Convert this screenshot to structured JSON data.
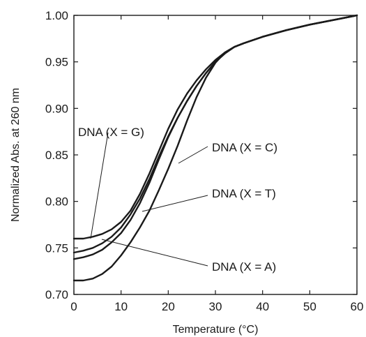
{
  "chart_data": {
    "type": "line",
    "title": "",
    "xlabel": "Temperature (°C)",
    "ylabel": "Normalized Abs. at 260 nm",
    "xlim": [
      0,
      60
    ],
    "ylim": [
      0.7,
      1.0
    ],
    "x_ticks": [
      "0",
      "10",
      "20",
      "30",
      "40",
      "50",
      "60"
    ],
    "y_ticks": [
      "0.70",
      "0.75",
      "0.80",
      "0.85",
      "0.90",
      "0.95",
      "1.00"
    ],
    "grid": false,
    "legend": "none",
    "series": [
      {
        "name": "DNA (X = G)",
        "color": "#1a1a1a",
        "x": [
          0,
          2,
          4,
          6,
          8,
          10,
          12,
          14,
          16,
          18,
          20,
          22,
          24,
          26,
          28,
          30,
          32,
          34,
          36,
          40,
          45,
          50,
          55,
          60
        ],
        "y": [
          0.76,
          0.76,
          0.762,
          0.765,
          0.77,
          0.778,
          0.79,
          0.808,
          0.83,
          0.854,
          0.878,
          0.899,
          0.916,
          0.93,
          0.942,
          0.952,
          0.96,
          0.966,
          0.97,
          0.977,
          0.984,
          0.99,
          0.995,
          1.0
        ]
      },
      {
        "name": "DNA (X = C)",
        "color": "#1a1a1a",
        "x": [
          0,
          2,
          4,
          6,
          8,
          10,
          12,
          14,
          16,
          18,
          20,
          22,
          24,
          26,
          28,
          30,
          32,
          34,
          36,
          40,
          45,
          50,
          55,
          60
        ],
        "y": [
          0.715,
          0.715,
          0.717,
          0.722,
          0.73,
          0.742,
          0.756,
          0.772,
          0.79,
          0.812,
          0.835,
          0.86,
          0.887,
          0.912,
          0.933,
          0.949,
          0.96,
          0.966,
          0.97,
          0.977,
          0.984,
          0.99,
          0.995,
          1.0
        ]
      },
      {
        "name": "DNA (X = T)",
        "color": "#1a1a1a",
        "x": [
          0,
          2,
          4,
          6,
          8,
          10,
          12,
          14,
          16,
          18,
          20,
          22,
          24,
          26,
          28,
          30,
          32,
          34,
          36,
          40,
          45,
          50,
          55,
          60
        ],
        "y": [
          0.745,
          0.747,
          0.75,
          0.755,
          0.762,
          0.772,
          0.786,
          0.803,
          0.824,
          0.848,
          0.87,
          0.89,
          0.908,
          0.924,
          0.938,
          0.95,
          0.959,
          0.966,
          0.97,
          0.977,
          0.984,
          0.99,
          0.995,
          1.0
        ]
      },
      {
        "name": "DNA (X = A)",
        "color": "#1a1a1a",
        "x": [
          0,
          2,
          4,
          6,
          8,
          10,
          12,
          14,
          16,
          18,
          20,
          22,
          24,
          26,
          28,
          30,
          32,
          34,
          36,
          40,
          45,
          50,
          55,
          60
        ],
        "y": [
          0.738,
          0.74,
          0.743,
          0.748,
          0.756,
          0.766,
          0.78,
          0.798,
          0.82,
          0.845,
          0.869,
          0.89,
          0.908,
          0.924,
          0.938,
          0.95,
          0.959,
          0.966,
          0.97,
          0.977,
          0.984,
          0.99,
          0.995,
          1.0
        ]
      }
    ]
  }
}
